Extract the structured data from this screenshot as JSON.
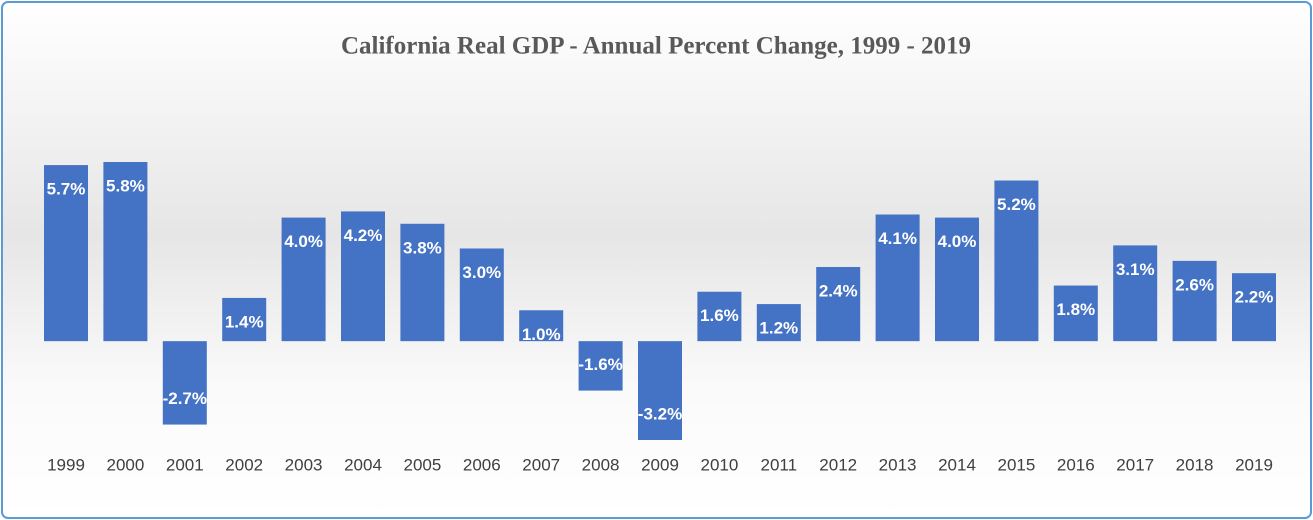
{
  "chart_data": {
    "type": "bar",
    "title": "California Real GDP - Annual Percent Change, 1999 - 2019",
    "categories": [
      "1999",
      "2000",
      "2001",
      "2002",
      "2003",
      "2004",
      "2005",
      "2006",
      "2007",
      "2008",
      "2009",
      "2010",
      "2011",
      "2012",
      "2013",
      "2014",
      "2015",
      "2016",
      "2017",
      "2018",
      "2019"
    ],
    "values": [
      5.7,
      5.8,
      -2.7,
      1.4,
      4.0,
      4.2,
      3.8,
      3.0,
      1.0,
      -1.6,
      -3.2,
      1.6,
      1.2,
      2.4,
      4.1,
      4.0,
      5.2,
      1.8,
      3.1,
      2.6,
      2.2
    ],
    "value_labels": [
      "5.7%",
      "5.8%",
      "-2.7%",
      "1.4%",
      "4.0%",
      "4.2%",
      "3.8%",
      "3.0%",
      "1.0%",
      "-1.6%",
      "-3.2%",
      "1.6%",
      "1.2%",
      "2.4%",
      "4.1%",
      "4.0%",
      "5.2%",
      "1.8%",
      "3.1%",
      "2.6%",
      "2.2%"
    ],
    "color": "#4472c4"
  }
}
